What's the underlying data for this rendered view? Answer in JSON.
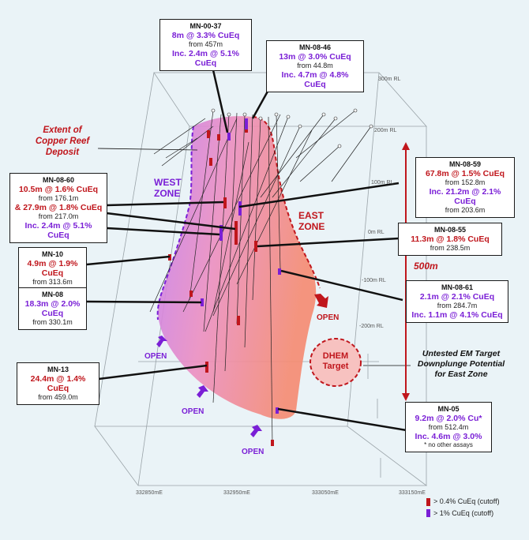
{
  "boxes": {
    "mn0037": {
      "hole": "MN-00-37",
      "res1": "8m @ 3.3% CuEq",
      "from1": "from 457m",
      "res2": "Inc. 2.4m @ 5.1% CuEq"
    },
    "mn0846": {
      "hole": "MN-08-46",
      "res1": "13m @ 3.0% CuEq",
      "from1": "from 44.8m",
      "res2": "Inc. 4.7m @ 4.8% CuEq"
    },
    "mn0860": {
      "hole": "MN-08-60",
      "res1": "10.5m @ 1.6% CuEq",
      "from1": "from 176.1m",
      "res2": "& 27.9m @ 1.8% CuEq",
      "from2": "from 217.0m",
      "res3": "Inc. 2.4m @ 5.1% CuEq"
    },
    "mn0859": {
      "hole": "MN-08-59",
      "res1": "67.8m @ 1.5% CuEq",
      "from1": "from 152.8m",
      "res2": "Inc. 21.2m @ 2.1% CuEq",
      "from2": "from 203.6m"
    },
    "mn0855": {
      "hole": "MN-08-55",
      "res1": "11.3m @ 1.8% CuEq",
      "from1": "from 238.5m"
    },
    "mn10": {
      "hole": "MN-10",
      "res1": "4.9m @ 1.9% CuEq",
      "from1": "from 313.6m"
    },
    "mn08": {
      "hole": "MN-08",
      "res1": "18.3m @ 2.0% CuEq",
      "from1": "from 330.1m"
    },
    "mn0861": {
      "hole": "MN-08-61",
      "res1": "2.1m @ 2.1% CuEq",
      "from1": "from 284.7m",
      "res2": "Inc. 1.1m @ 4.1% CuEq"
    },
    "mn13": {
      "hole": "MN-13",
      "res1": "24.4m @ 1.4% CuEq",
      "from1": "from 459.0m"
    },
    "mn05": {
      "hole": "MN-05",
      "res1": "9.2m @ 2.0% Cu*",
      "from1": "from 512.4m",
      "res2": "Inc. 4.6m @ 3.0%",
      "note": "* no other assays"
    }
  },
  "labels": {
    "extent": "Extent of Copper Reef Deposit",
    "west_zone": "WEST ZONE",
    "east_zone": "EAST ZONE",
    "open": "OPEN",
    "dhem": "DHEM Target",
    "untested": "Untested EM Target Downplunge Potential for East Zone",
    "scale": "500m"
  },
  "rl_labels": [
    "300m RL",
    "200m RL",
    "100m RL",
    "0m RL",
    "-100m RL",
    "-200m RL"
  ],
  "easting_labels": [
    "332850mE",
    "332950mE",
    "333050mE",
    "333150mE"
  ],
  "legend": [
    {
      "label": "> 0.4% CuEq (cutoff)",
      "color": "#c0161c"
    },
    {
      "label": "> 1% CuEq (cutoff)",
      "color": "#7a1fd6"
    }
  ],
  "colors": {
    "red": "#c0161c",
    "purple": "#7a1fd6",
    "background": "#eaf3f7"
  }
}
